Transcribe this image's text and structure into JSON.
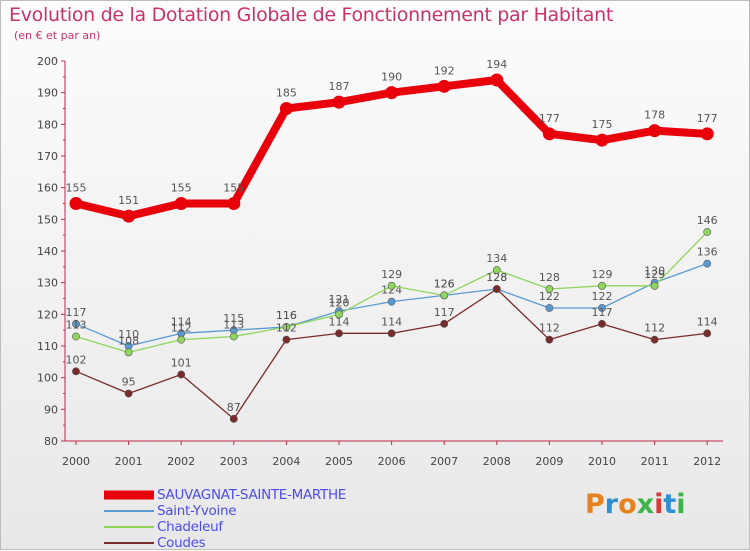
{
  "header": {
    "title": "Evolution de la Dotation Globale de Fonctionnement par Habitant",
    "subtitle": "(en € et par an)"
  },
  "brand": {
    "logo_text": "Proxiti",
    "letter_colors": [
      "#e6821e",
      "#2f8fd0",
      "#e6821e",
      "#3db34a",
      "#d63a3a",
      "#2f8fd0",
      "#3db34a"
    ]
  },
  "chart_data": {
    "type": "line",
    "x": [
      "2000",
      "2001",
      "2002",
      "2003",
      "2004",
      "2005",
      "2006",
      "2007",
      "2008",
      "2009",
      "2010",
      "2011",
      "2012"
    ],
    "ylim": [
      80,
      200
    ],
    "yticks": [
      80,
      90,
      100,
      110,
      120,
      130,
      140,
      150,
      160,
      170,
      180,
      190,
      200
    ],
    "grid": false,
    "legend_position": "bottom-left",
    "series": [
      {
        "name": "SAUVAGNAT-SAINTE-MARTHE",
        "color": "#e8000b",
        "style": "bold",
        "values": [
          155,
          151,
          155,
          155,
          185,
          187,
          190,
          192,
          194,
          177,
          175,
          178,
          177
        ]
      },
      {
        "name": "Saint-Yvoine",
        "color": "#5a9ad3",
        "style": "thin",
        "values": [
          117,
          110,
          114,
          115,
          116,
          121,
          124,
          126,
          128,
          122,
          122,
          130,
          136
        ]
      },
      {
        "name": "Chadeleuf",
        "color": "#8ed65c",
        "style": "thin",
        "values": [
          113,
          108,
          112,
          113,
          116,
          120,
          129,
          126,
          134,
          128,
          129,
          129,
          146
        ]
      },
      {
        "name": "Coudes",
        "color": "#7a2a2a",
        "style": "thin",
        "values": [
          102,
          95,
          101,
          87,
          112,
          114,
          114,
          117,
          128,
          112,
          117,
          112,
          114
        ]
      }
    ]
  }
}
